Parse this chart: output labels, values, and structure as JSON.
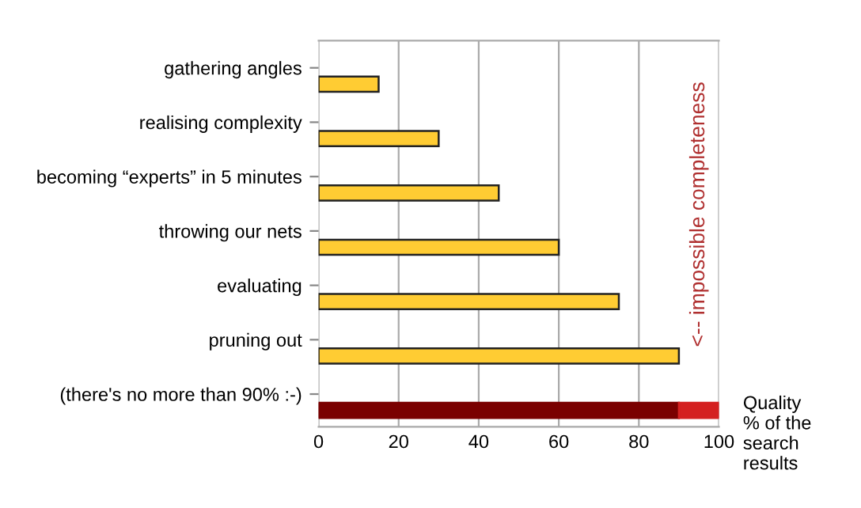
{
  "chart_data": {
    "type": "bar",
    "orientation": "horizontal",
    "stacked": true,
    "categories": [
      "gathering angles",
      "realising complexity",
      "becoming “experts” in 5 minutes",
      "throwing our nets",
      "evaluating",
      "pruning out",
      "(there's no more than 90% :-)"
    ],
    "series": [
      {
        "colors": [
          "#ffcc33",
          "#ffcc33",
          "#ffcc33",
          "#ffcc33",
          "#ffcc33",
          "#ffcc33",
          "#7a0000"
        ],
        "values": [
          15,
          30,
          45,
          60,
          75,
          90,
          90
        ]
      },
      {
        "color": "#d42020",
        "values": [
          null,
          null,
          null,
          null,
          null,
          null,
          10
        ]
      }
    ],
    "xlim": [
      0,
      100
    ],
    "xticks": [
      0,
      20,
      40,
      60,
      80,
      100
    ],
    "xlabel": "Quality\n% of the\nsearch\nresults",
    "annotations": [
      "<-- impossible completeness"
    ],
    "grid": "x",
    "legend": false
  }
}
